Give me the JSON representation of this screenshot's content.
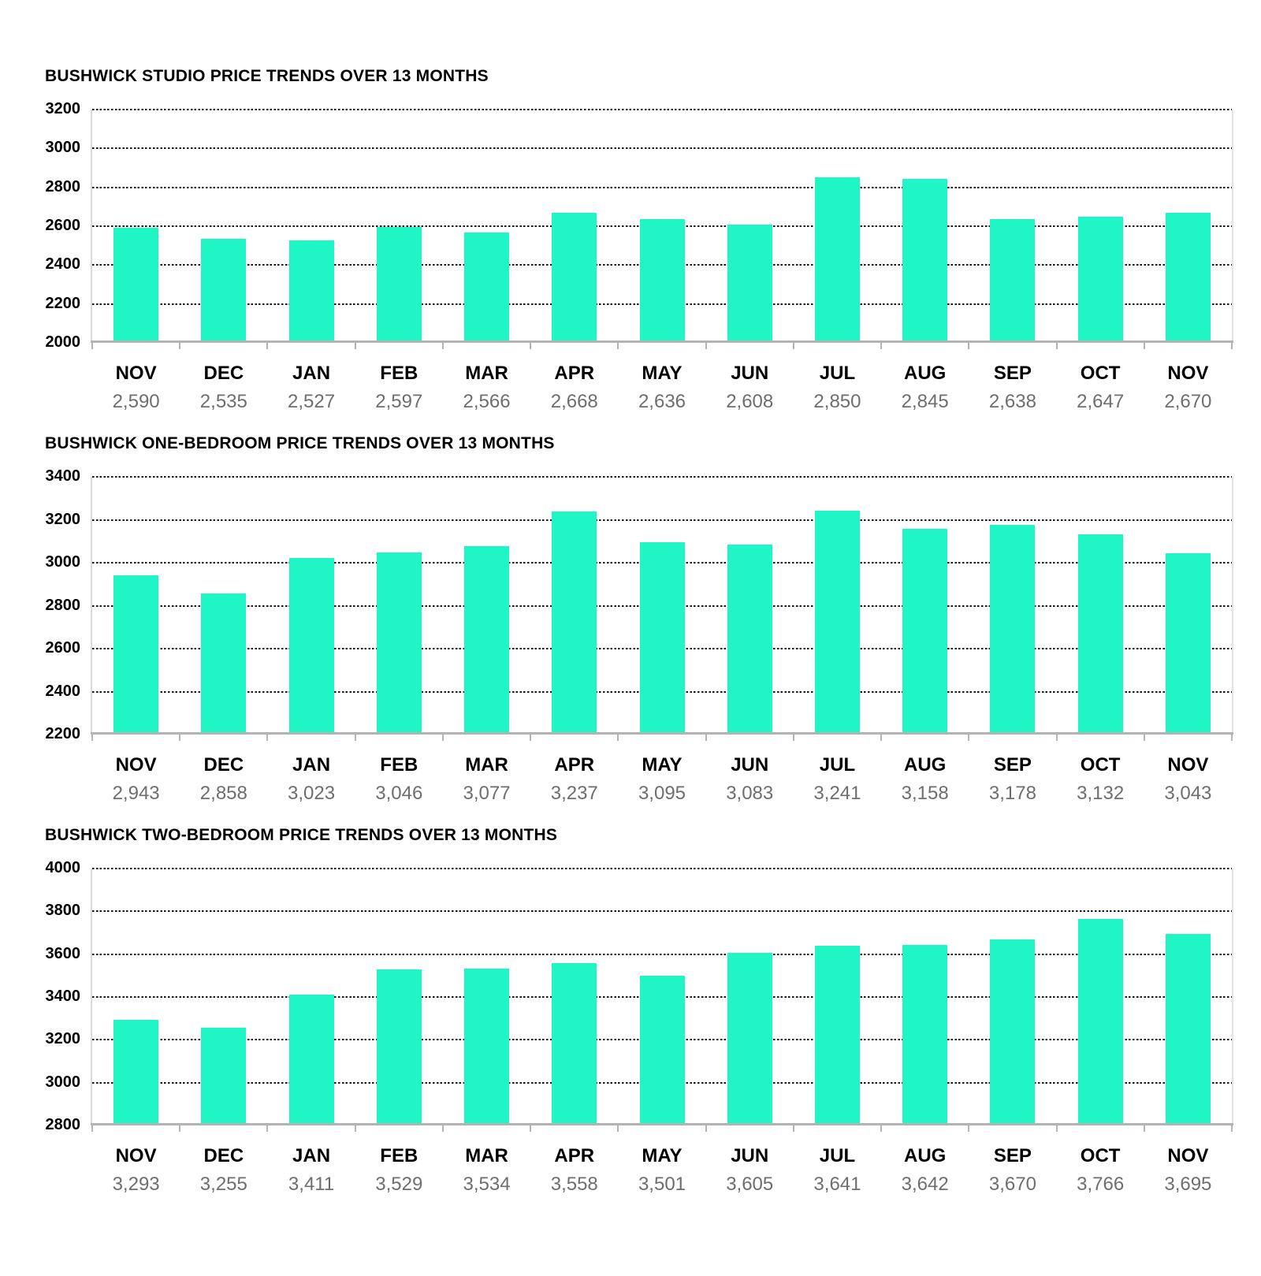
{
  "page": {
    "background": "#ffffff"
  },
  "styles": {
    "bar_color": "#20f6c5",
    "grid_color": "#181818",
    "axis_color": "#b3b3b3",
    "y_axis_line_color": "#d9d9d9",
    "title_color": "#000000",
    "month_label_color": "#000000",
    "value_label_color": "#6e6e6e"
  },
  "chart_data": [
    {
      "type": "bar",
      "title": "BUSHWICK STUDIO PRICE TRENDS OVER 13 MONTHS",
      "categories": [
        "NOV",
        "DEC",
        "JAN",
        "FEB",
        "MAR",
        "APR",
        "MAY",
        "JUN",
        "JUL",
        "AUG",
        "SEP",
        "OCT",
        "NOV"
      ],
      "values": [
        2590,
        2535,
        2527,
        2597,
        2566,
        2668,
        2636,
        2608,
        2850,
        2845,
        2638,
        2647,
        2670
      ],
      "value_labels": [
        "2,590",
        "2,535",
        "2,527",
        "2,597",
        "2,566",
        "2,668",
        "2,636",
        "2,608",
        "2,850",
        "2,845",
        "2,638",
        "2,647",
        "2,670"
      ],
      "ylim": [
        2000,
        3200
      ],
      "ytick_step": 200,
      "ytick_labels": [
        "2000",
        "2200",
        "2400",
        "2600",
        "2800",
        "3000",
        "3200"
      ],
      "grid": true,
      "legend": "none"
    },
    {
      "type": "bar",
      "title": "BUSHWICK ONE-BEDROOM PRICE TRENDS OVER 13 MONTHS",
      "categories": [
        "NOV",
        "DEC",
        "JAN",
        "FEB",
        "MAR",
        "APR",
        "MAY",
        "JUN",
        "JUL",
        "AUG",
        "SEP",
        "OCT",
        "NOV"
      ],
      "values": [
        2943,
        2858,
        3023,
        3046,
        3077,
        3237,
        3095,
        3083,
        3241,
        3158,
        3178,
        3132,
        3043
      ],
      "value_labels": [
        "2,943",
        "2,858",
        "3,023",
        "3,046",
        "3,077",
        "3,237",
        "3,095",
        "3,083",
        "3,241",
        "3,158",
        "3,178",
        "3,132",
        "3,043"
      ],
      "ylim": [
        2200,
        3400
      ],
      "ytick_step": 200,
      "ytick_labels": [
        "2200",
        "2400",
        "2600",
        "2800",
        "3000",
        "3200",
        "3400"
      ],
      "grid": true,
      "legend": "none"
    },
    {
      "type": "bar",
      "title": "BUSHWICK TWO-BEDROOM PRICE TRENDS OVER 13 MONTHS",
      "categories": [
        "NOV",
        "DEC",
        "JAN",
        "FEB",
        "MAR",
        "APR",
        "MAY",
        "JUN",
        "JUL",
        "AUG",
        "SEP",
        "OCT",
        "NOV"
      ],
      "values": [
        3293,
        3255,
        3411,
        3529,
        3534,
        3558,
        3501,
        3605,
        3641,
        3642,
        3670,
        3766,
        3695
      ],
      "value_labels": [
        "3,293",
        "3,255",
        "3,411",
        "3,529",
        "3,534",
        "3,558",
        "3,501",
        "3,605",
        "3,641",
        "3,642",
        "3,670",
        "3,766",
        "3,695"
      ],
      "ylim": [
        2800,
        4000
      ],
      "ytick_step": 200,
      "ytick_labels": [
        "2800",
        "3000",
        "3200",
        "3400",
        "3600",
        "3800",
        "4000"
      ],
      "grid": true,
      "legend": "none"
    }
  ]
}
